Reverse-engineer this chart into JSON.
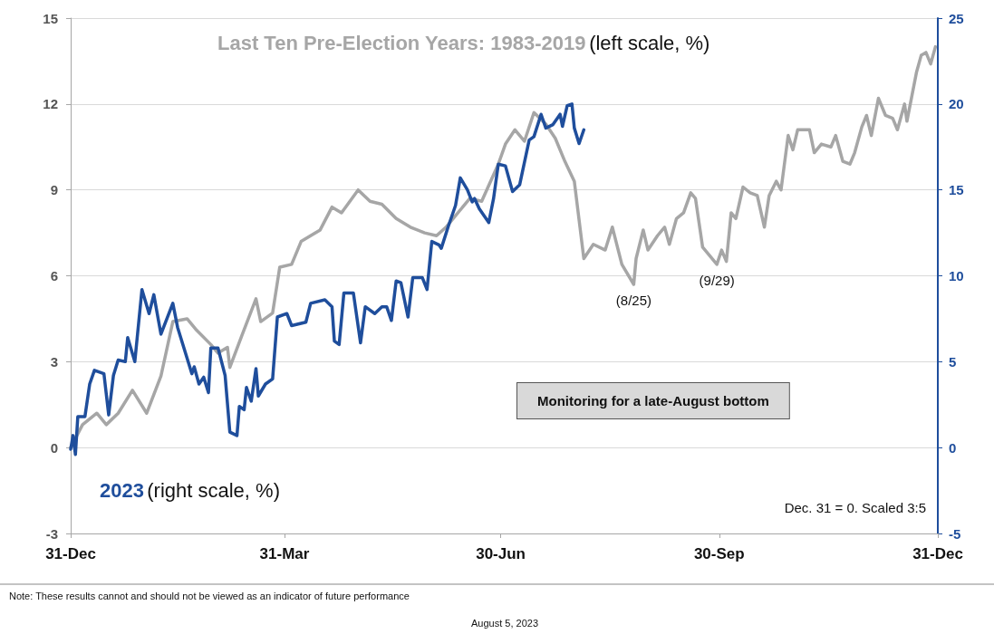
{
  "chart_data": {
    "type": "line",
    "xlim": [
      "2022-12-31",
      "2023-12-31"
    ],
    "xticks": [
      {
        "value": "2022-12-31",
        "label": "31-Dec"
      },
      {
        "value": "2023-03-31",
        "label": "31-Mar"
      },
      {
        "value": "2023-06-30",
        "label": "30-Jun"
      },
      {
        "value": "2023-09-30",
        "label": "30-Sep"
      },
      {
        "value": "2023-12-31",
        "label": "31-Dec"
      }
    ],
    "ylim": [
      -3,
      15
    ],
    "yticks": [
      -3,
      0,
      3,
      6,
      9,
      12,
      15
    ],
    "y2lim": [
      -5,
      25
    ],
    "y2ticks": [
      -5,
      0,
      5,
      10,
      15,
      20,
      25
    ],
    "grid": "y",
    "legend": false,
    "marker": "none",
    "line_style": "solid",
    "series": [
      {
        "name": "Last Ten Pre-Election Years: 1983-2019",
        "color": "#a6a6a6",
        "x": [
          "2022-12-31",
          "2023-01-05",
          "2023-01-11",
          "2023-01-15",
          "2023-01-20",
          "2023-01-26",
          "2023-02-01",
          "2023-02-07",
          "2023-02-12",
          "2023-02-18",
          "2023-02-22",
          "2023-02-28",
          "2023-03-03",
          "2023-03-07",
          "2023-03-08",
          "2023-03-13",
          "2023-03-19",
          "2023-03-21",
          "2023-03-26",
          "2023-03-29",
          "2023-04-03",
          "2023-04-07",
          "2023-04-15",
          "2023-04-20",
          "2023-04-24",
          "2023-05-01",
          "2023-05-06",
          "2023-05-11",
          "2023-05-17",
          "2023-05-23",
          "2023-05-29",
          "2023-06-03",
          "2023-06-07",
          "2023-06-11",
          "2023-06-17",
          "2023-06-22",
          "2023-06-29",
          "2023-07-02",
          "2023-07-06",
          "2023-07-10",
          "2023-07-14",
          "2023-07-19",
          "2023-07-23",
          "2023-07-27",
          "2023-07-31",
          "2023-08-04",
          "2023-08-08",
          "2023-08-13",
          "2023-08-16",
          "2023-08-20",
          "2023-08-25",
          "2023-08-26",
          "2023-08-29",
          "2023-08-31",
          "2023-09-04",
          "2023-09-07",
          "2023-09-09",
          "2023-09-12",
          "2023-09-15",
          "2023-09-18",
          "2023-09-20",
          "2023-09-23",
          "2023-09-29",
          "2023-10-01",
          "2023-10-03",
          "2023-10-05",
          "2023-10-07",
          "2023-10-10",
          "2023-10-13",
          "2023-10-16",
          "2023-10-19",
          "2023-10-21",
          "2023-10-24",
          "2023-10-26",
          "2023-10-29",
          "2023-10-31",
          "2023-11-02",
          "2023-11-07",
          "2023-11-09",
          "2023-11-12",
          "2023-11-16",
          "2023-11-18",
          "2023-11-21",
          "2023-11-24",
          "2023-11-26",
          "2023-11-29",
          "2023-12-01",
          "2023-12-03",
          "2023-12-06",
          "2023-12-09",
          "2023-12-12",
          "2023-12-14",
          "2023-12-17",
          "2023-12-18",
          "2023-12-22",
          "2023-12-24",
          "2023-12-26",
          "2023-12-28",
          "2023-12-30"
        ],
        "values": [
          0,
          0.8,
          1.2,
          0.8,
          1.2,
          2.0,
          1.2,
          2.5,
          4.4,
          4.5,
          4.1,
          3.6,
          3.3,
          3.5,
          2.8,
          3.9,
          5.2,
          4.4,
          4.7,
          6.3,
          6.4,
          7.2,
          7.6,
          8.4,
          8.2,
          9.0,
          8.6,
          8.5,
          8.0,
          7.7,
          7.5,
          7.4,
          7.7,
          8.1,
          8.7,
          8.6,
          9.9,
          10.6,
          11.1,
          10.7,
          11.7,
          11.3,
          10.8,
          10.0,
          9.3,
          6.6,
          7.1,
          6.9,
          7.7,
          6.4,
          5.7,
          6.6,
          7.6,
          6.9,
          7.4,
          7.7,
          7.1,
          8.0,
          8.2,
          8.9,
          8.7,
          7.0,
          6.4,
          6.9,
          6.5,
          8.2,
          8.0,
          9.1,
          8.9,
          8.8,
          7.7,
          8.8,
          9.3,
          9.0,
          10.9,
          10.4,
          11.1,
          11.1,
          10.3,
          10.6,
          10.5,
          10.9,
          10.0,
          9.9,
          10.3,
          11.2,
          11.6,
          10.9,
          12.2,
          11.6,
          11.5,
          11.1,
          12.0,
          11.4,
          13.1,
          13.7,
          13.8,
          13.4,
          14.0
        ]
      },
      {
        "name": "2023",
        "color": "#1f4e9c",
        "axis": "y2",
        "x": [
          "2022-12-31",
          "2023-01-01",
          "2023-01-02",
          "2023-01-03",
          "2023-01-06",
          "2023-01-08",
          "2023-01-10",
          "2023-01-14",
          "2023-01-16",
          "2023-01-18",
          "2023-01-20",
          "2023-01-23",
          "2023-01-24",
          "2023-01-27",
          "2023-01-30",
          "2023-02-02",
          "2023-02-04",
          "2023-02-07",
          "2023-02-12",
          "2023-02-14",
          "2023-02-20",
          "2023-02-21",
          "2023-02-23",
          "2023-02-25",
          "2023-02-27",
          "2023-02-28",
          "2023-03-03",
          "2023-03-06",
          "2023-03-08",
          "2023-03-11",
          "2023-03-12",
          "2023-03-14",
          "2023-03-15",
          "2023-03-17",
          "2023-03-19",
          "2023-03-20",
          "2023-03-23",
          "2023-03-26",
          "2023-03-27",
          "2023-03-28",
          "2023-04-01",
          "2023-04-03",
          "2023-04-09",
          "2023-04-11",
          "2023-04-17",
          "2023-04-20",
          "2023-04-21",
          "2023-04-23",
          "2023-04-25",
          "2023-04-29",
          "2023-05-02",
          "2023-05-04",
          "2023-05-08",
          "2023-05-11",
          "2023-05-13",
          "2023-05-15",
          "2023-05-17",
          "2023-05-19",
          "2023-05-22",
          "2023-05-24",
          "2023-05-28",
          "2023-05-30",
          "2023-06-01",
          "2023-06-04",
          "2023-06-05",
          "2023-06-08",
          "2023-06-11",
          "2023-06-13",
          "2023-06-16",
          "2023-06-18",
          "2023-06-19",
          "2023-06-21",
          "2023-06-25",
          "2023-06-27",
          "2023-06-29",
          "2023-07-02",
          "2023-07-05",
          "2023-07-08",
          "2023-07-12",
          "2023-07-14",
          "2023-07-17",
          "2023-07-19",
          "2023-07-22",
          "2023-07-25",
          "2023-07-26",
          "2023-07-28",
          "2023-07-30",
          "2023-07-31",
          "2023-08-02",
          "2023-08-04"
        ],
        "values": [
          -0.1,
          0.7,
          -0.4,
          1.8,
          1.8,
          3.7,
          4.5,
          4.3,
          1.9,
          4.2,
          5.1,
          5.0,
          6.4,
          5.0,
          9.2,
          7.8,
          8.9,
          6.6,
          8.4,
          7.0,
          4.3,
          4.7,
          3.7,
          4.1,
          3.2,
          5.8,
          5.8,
          4.2,
          0.9,
          0.7,
          2.4,
          2.2,
          3.5,
          2.7,
          4.6,
          3.0,
          3.7,
          4.0,
          5.8,
          7.6,
          7.8,
          7.1,
          7.3,
          8.4,
          8.6,
          8.2,
          6.2,
          6.0,
          9.0,
          9.0,
          6.1,
          8.2,
          7.8,
          8.2,
          8.2,
          7.4,
          9.7,
          9.6,
          7.6,
          9.9,
          9.9,
          9.2,
          12.0,
          11.8,
          11.6,
          12.9,
          14.1,
          15.7,
          15.0,
          14.3,
          14.5,
          13.9,
          13.1,
          14.5,
          16.5,
          16.4,
          14.9,
          15.3,
          17.9,
          18.1,
          19.4,
          18.6,
          18.8,
          19.4,
          18.7,
          19.9,
          20.0,
          18.6,
          17.7,
          18.5
        ]
      }
    ],
    "annotations": [
      "(left scale, %)",
      "(right scale, %)",
      {
        "text": "(8/25)",
        "x": "2023-08-25",
        "y": 5.7
      },
      {
        "text": "(9/29)",
        "x": "2023-09-29",
        "y": 6.4
      },
      "Monitoring for a late-August bottom",
      "Dec. 31 = 0. Scaled 3:5",
      "Note: These results cannot and should not be viewed as an indicator of future performance",
      "August 5, 2023"
    ]
  }
}
